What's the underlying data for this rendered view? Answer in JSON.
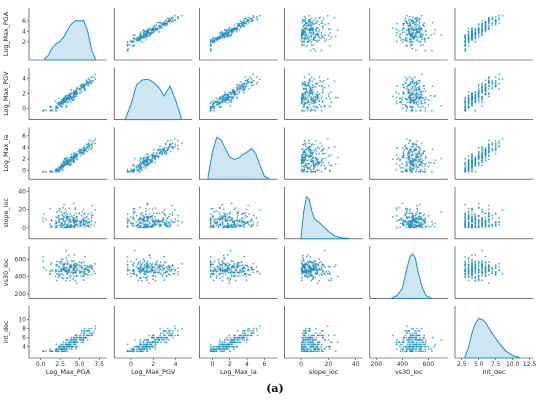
{
  "caption": "(a)",
  "chart_data": {
    "type": "scatter",
    "variables": [
      "Log_Max_PGA",
      "Log_Max_PGV",
      "Log_Max_ia",
      "slope_loc",
      "vs30_loc",
      "int_dec"
    ],
    "x_axis_labels": [
      "Log_Max_PGA",
      "Log_Max_PGV",
      "Log_Max_ia",
      "slope_loc",
      "vs30_loc",
      "int_dec"
    ],
    "y_axis_labels": [
      "Log_Max_PGA",
      "Log_Max_PGV",
      "Log_Max_ia",
      "slope_loc",
      "vs30_loc",
      "int_dec"
    ],
    "diagonal": "kde",
    "off_diagonal": "scatter",
    "point_color": "#1f8fc4",
    "x_ticks": [
      [
        "0.0",
        "2.5",
        "5.0",
        "7.5"
      ],
      [
        "0",
        "2",
        "4"
      ],
      [
        "0",
        "2",
        "4",
        "6"
      ],
      [
        "0",
        "20",
        "40"
      ],
      [
        "200",
        "400",
        "600"
      ],
      [
        "2.5",
        "5.0",
        "7.5",
        "10.0",
        "12.5"
      ]
    ],
    "y_ticks": [
      [
        "2",
        "4",
        "6"
      ],
      [
        "0",
        "2",
        "4"
      ],
      [
        "0",
        "2",
        "4",
        "6"
      ],
      [
        "0",
        "20",
        "40"
      ],
      [
        "200",
        "400",
        "600"
      ],
      [
        "4",
        "6",
        "8",
        "10"
      ]
    ],
    "ranges": [
      [
        -1.5,
        8.5
      ],
      [
        -1.5,
        5.5
      ],
      [
        -1.5,
        7.5
      ],
      [
        -12,
        45
      ],
      [
        150,
        750
      ],
      [
        1.5,
        13
      ]
    ],
    "y_tick_values": [
      [
        2,
        4,
        6
      ],
      [
        0,
        2,
        4
      ],
      [
        0,
        2,
        4,
        6
      ],
      [
        0,
        20,
        40
      ],
      [
        200,
        400,
        600
      ],
      [
        4,
        6,
        8,
        10
      ]
    ],
    "x_tick_values": [
      [
        0,
        2.5,
        5,
        7.5
      ],
      [
        0,
        2,
        4
      ],
      [
        0,
        2,
        4,
        6
      ],
      [
        0,
        20,
        40
      ],
      [
        200,
        400,
        600
      ],
      [
        2.5,
        5,
        7.5,
        10,
        12.5
      ]
    ],
    "kde_curves": [
      {
        "x": [
          0.5,
          1.0,
          1.5,
          2.0,
          2.5,
          3.0,
          3.5,
          4.0,
          4.5,
          5.0,
          5.5,
          6.0,
          6.5,
          7.0
        ],
        "y": [
          0.02,
          0.1,
          0.25,
          0.33,
          0.38,
          0.48,
          0.62,
          0.74,
          0.8,
          0.79,
          0.8,
          0.6,
          0.22,
          0.03
        ]
      },
      {
        "x": [
          -0.5,
          0.0,
          0.5,
          1.0,
          1.5,
          2.0,
          2.5,
          3.0,
          3.5,
          4.0,
          4.5
        ],
        "y": [
          0.02,
          0.3,
          0.7,
          0.8,
          0.82,
          0.76,
          0.65,
          0.48,
          0.68,
          0.4,
          0.05
        ]
      },
      {
        "x": [
          -0.5,
          0.0,
          0.5,
          1.0,
          1.5,
          2.0,
          2.5,
          3.0,
          3.5,
          4.0,
          4.5,
          5.0,
          5.5,
          6.0,
          6.5
        ],
        "y": [
          0.05,
          0.55,
          0.85,
          0.8,
          0.62,
          0.45,
          0.4,
          0.43,
          0.5,
          0.55,
          0.62,
          0.52,
          0.28,
          0.06,
          0.02
        ]
      },
      {
        "x": [
          0,
          2,
          4,
          6,
          8,
          10,
          13,
          16,
          20,
          25,
          30,
          35
        ],
        "y": [
          0.05,
          0.55,
          0.85,
          0.8,
          0.55,
          0.4,
          0.34,
          0.26,
          0.15,
          0.05,
          0.02,
          0.01
        ]
      },
      {
        "x": [
          320,
          360,
          400,
          430,
          460,
          480,
          500,
          520,
          550,
          580,
          620
        ],
        "y": [
          0.01,
          0.06,
          0.2,
          0.55,
          0.85,
          0.9,
          0.82,
          0.55,
          0.25,
          0.06,
          0.01
        ]
      },
      {
        "x": [
          3,
          3.5,
          4,
          4.5,
          5,
          5.5,
          6,
          6.5,
          7,
          7.5,
          8,
          8.5,
          9,
          10,
          11
        ],
        "y": [
          0.04,
          0.22,
          0.5,
          0.7,
          0.8,
          0.78,
          0.72,
          0.6,
          0.5,
          0.4,
          0.3,
          0.22,
          0.14,
          0.05,
          0.01
        ]
      }
    ]
  }
}
